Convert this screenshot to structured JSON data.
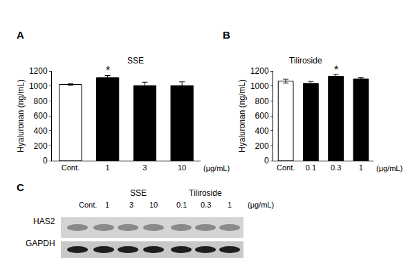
{
  "chart_data": [
    {
      "type": "bar",
      "panel_label": "A",
      "title": "SSE",
      "y_label": "Hyaluronan (ng/mL)",
      "x_unit": "(μg/mL)",
      "categories": [
        "Cont.",
        "1",
        "3",
        "10"
      ],
      "values": [
        1020,
        1110,
        1005,
        1005
      ],
      "errors": [
        10,
        30,
        45,
        50
      ],
      "colors": [
        "#ffffff",
        "#000000",
        "#000000",
        "#000000"
      ],
      "ylim": [
        0,
        1200
      ],
      "yticks": [
        0,
        200,
        400,
        600,
        800,
        1000,
        1200
      ],
      "grid": false,
      "annotations": [
        {
          "text": "*",
          "category": "1"
        }
      ]
    },
    {
      "type": "bar",
      "panel_label": "B",
      "title": "Tiliroside",
      "y_label": "Hyaluronan (ng/mL)",
      "x_unit": "(μg/mL)",
      "categories": [
        "Cont.",
        "0.1",
        "0.3",
        "1"
      ],
      "values": [
        1065,
        1035,
        1130,
        1095
      ],
      "errors": [
        25,
        25,
        25,
        15
      ],
      "colors": [
        "#ffffff",
        "#000000",
        "#000000",
        "#000000"
      ],
      "ylim": [
        0,
        1200
      ],
      "yticks": [
        0,
        200,
        400,
        600,
        800,
        1000,
        1200
      ],
      "grid": false,
      "annotations": [
        {
          "text": "*",
          "category": "0.3"
        }
      ]
    }
  ],
  "blot": {
    "panel_label": "C",
    "lanes": [
      "Cont.",
      "1",
      "3",
      "10",
      "0.1",
      "0.3",
      "1"
    ],
    "unit": "(μg/mL)",
    "groups": [
      {
        "label": "SSE",
        "lanes": [
          1,
          2,
          3
        ]
      },
      {
        "label": "Tiliroside",
        "lanes": [
          4,
          5,
          6
        ]
      }
    ],
    "rows": [
      "HAS2",
      "GAPDH"
    ]
  }
}
